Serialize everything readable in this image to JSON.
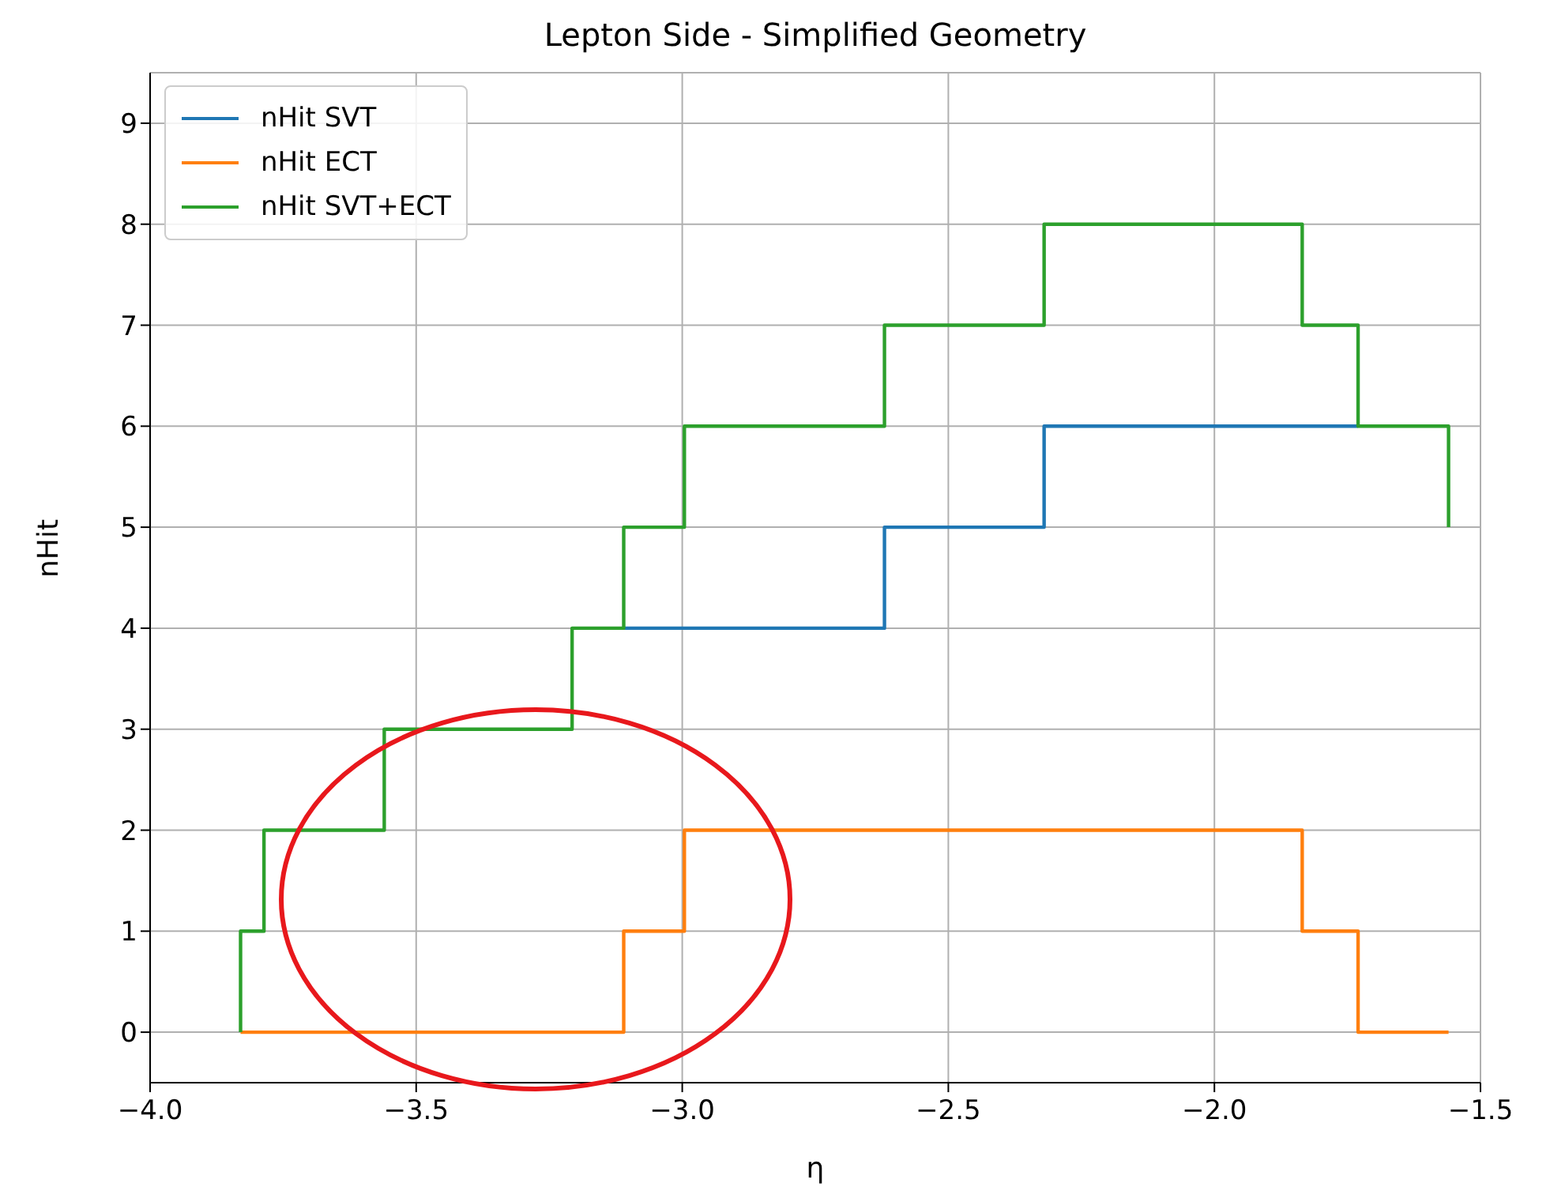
{
  "chart_data": {
    "type": "step",
    "title": "Lepton Side - Simplified Geometry",
    "xlabel": "η",
    "ylabel": "nHit",
    "x": [
      -3.83,
      -3.83,
      -3.786,
      -3.56,
      -3.207,
      -3.11,
      -2.996,
      -2.62,
      -2.32,
      -1.835,
      -1.73,
      -1.56
    ],
    "series": [
      {
        "name": "nHit SVT",
        "color": "#1f77b4",
        "values": [
          null,
          null,
          null,
          null,
          null,
          4,
          4,
          5,
          6,
          6,
          6,
          null
        ]
      },
      {
        "name": "nHit ECT",
        "color": "#ff7f0e",
        "values": [
          0,
          0,
          0,
          0,
          0,
          1,
          2,
          2,
          2,
          1,
          0,
          0
        ]
      },
      {
        "name": "nHit SVT+ECT",
        "color": "#2ca02c",
        "values": [
          0,
          1,
          2,
          3,
          4,
          5,
          6,
          7,
          8,
          7,
          6,
          5
        ]
      }
    ],
    "xlim": [
      -4,
      -1.5
    ],
    "xticks": [
      {
        "value": -4,
        "label": "−4.0"
      },
      {
        "value": -3.5,
        "label": "−3.5"
      },
      {
        "value": -3,
        "label": "−3.0"
      },
      {
        "value": -2.5,
        "label": "−2.5"
      },
      {
        "value": -2,
        "label": "−2.0"
      },
      {
        "value": -1.5,
        "label": "−1.5"
      }
    ],
    "ylim": [
      -0.5,
      9.5
    ],
    "yticks": [
      0,
      1,
      2,
      3,
      4,
      5,
      6,
      7,
      8,
      9
    ],
    "grid": true,
    "legend": "top left",
    "marker": "none",
    "line_style": "solid"
  }
}
